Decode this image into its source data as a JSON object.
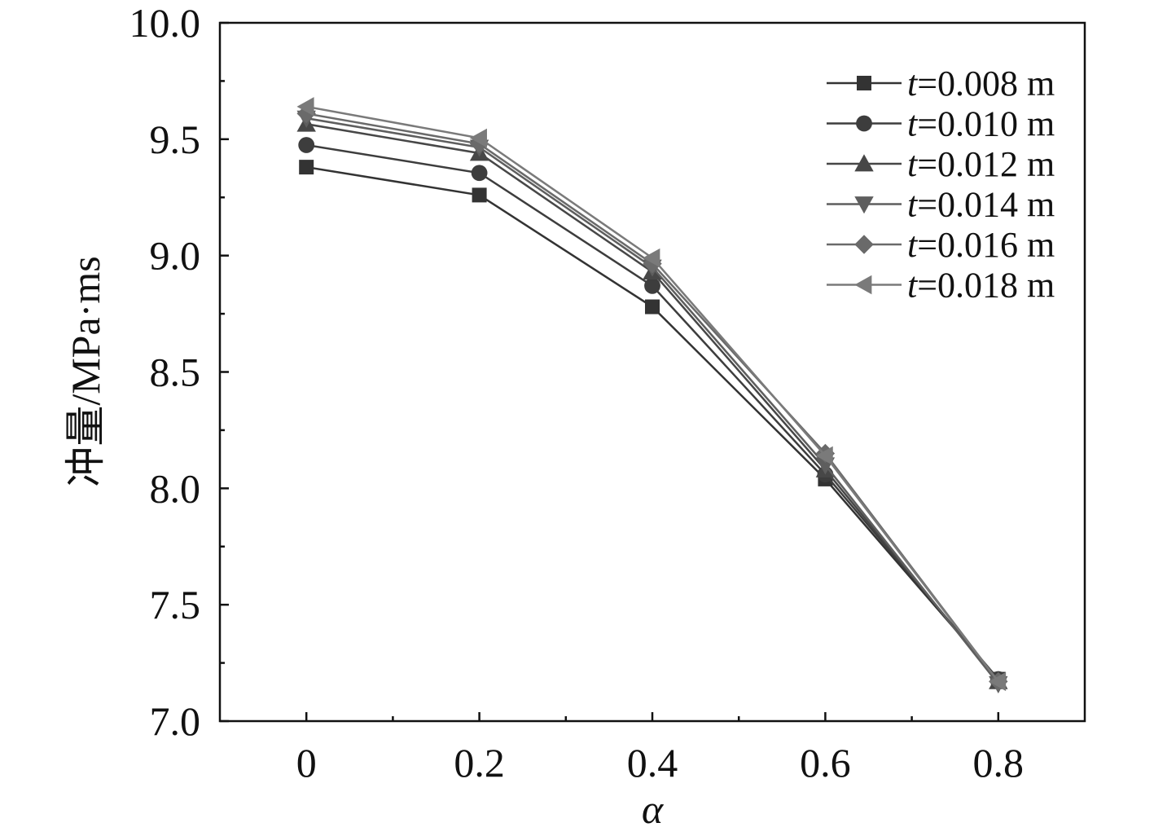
{
  "chart_data": {
    "type": "line",
    "xlabel": "α",
    "ylabel": "冲量/MPa·ms",
    "x": [
      0,
      0.2,
      0.4,
      0.6,
      0.8
    ],
    "x_tick_labels": [
      "0",
      "0.2",
      "0.4",
      "0.6",
      "0.8"
    ],
    "xlim": [
      -0.1,
      0.9
    ],
    "ylim": [
      7.0,
      10.0
    ],
    "y_ticks": [
      7.0,
      7.5,
      8.0,
      8.5,
      9.0,
      9.5,
      10.0
    ],
    "y_tick_labels": [
      "7.0",
      "7.5",
      "8.0",
      "8.5",
      "9.0",
      "9.5",
      "10.0"
    ],
    "grid": false,
    "legend_position": "top-right",
    "series": [
      {
        "name": "t=0.008 m",
        "name_var": "t",
        "name_rest": "=0.008 m",
        "marker": "square",
        "color": "#333333",
        "values": [
          9.38,
          9.26,
          8.78,
          8.04,
          7.18
        ]
      },
      {
        "name": "t=0.010 m",
        "name_var": "t",
        "name_rest": "=0.010 m",
        "marker": "circle",
        "color": "#3d3d3d",
        "values": [
          9.475,
          9.355,
          8.87,
          8.06,
          7.18
        ]
      },
      {
        "name": "t=0.012 m",
        "name_var": "t",
        "name_rest": "=0.012 m",
        "marker": "triangle-up",
        "color": "#474747",
        "values": [
          9.565,
          9.44,
          8.93,
          8.08,
          7.17
        ]
      },
      {
        "name": "t=0.014 m",
        "name_var": "t",
        "name_rest": "=0.014 m",
        "marker": "triangle-down",
        "color": "#5e5e5e",
        "values": [
          9.59,
          9.465,
          8.95,
          8.1,
          7.16
        ]
      },
      {
        "name": "t=0.016 m",
        "name_var": "t",
        "name_rest": "=0.016 m",
        "marker": "diamond",
        "color": "#6a6a6a",
        "values": [
          9.61,
          9.48,
          8.965,
          8.15,
          7.17
        ]
      },
      {
        "name": "t=0.018 m",
        "name_var": "t",
        "name_rest": "=0.018 m",
        "marker": "triangle-left",
        "color": "#7a7a7a",
        "values": [
          9.64,
          9.505,
          8.99,
          8.14,
          7.17
        ]
      }
    ]
  }
}
